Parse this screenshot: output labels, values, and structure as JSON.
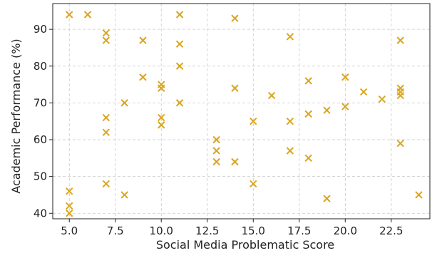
{
  "chart_data": {
    "type": "scatter",
    "title": "",
    "xlabel": "Social Media Problematic Score",
    "ylabel": "Academic Performance (%)",
    "xlim": [
      4.1,
      24.6
    ],
    "ylim": [
      38.5,
      97
    ],
    "xticks": [
      "5.0",
      "7.5",
      "10.0",
      "12.5",
      "15.0",
      "17.5",
      "20.0",
      "22.5"
    ],
    "yticks": [
      "40",
      "50",
      "60",
      "70",
      "80",
      "90"
    ],
    "grid": true,
    "marker": "x",
    "color": "#DAA520",
    "points": [
      {
        "x": 5,
        "y": 94
      },
      {
        "x": 5,
        "y": 46
      },
      {
        "x": 5,
        "y": 42
      },
      {
        "x": 5,
        "y": 40
      },
      {
        "x": 6,
        "y": 94
      },
      {
        "x": 7,
        "y": 89
      },
      {
        "x": 7,
        "y": 87
      },
      {
        "x": 7,
        "y": 66
      },
      {
        "x": 7,
        "y": 62
      },
      {
        "x": 7,
        "y": 48
      },
      {
        "x": 8,
        "y": 70
      },
      {
        "x": 8,
        "y": 45
      },
      {
        "x": 9,
        "y": 87
      },
      {
        "x": 9,
        "y": 77
      },
      {
        "x": 10,
        "y": 75
      },
      {
        "x": 10,
        "y": 74
      },
      {
        "x": 10,
        "y": 66
      },
      {
        "x": 10,
        "y": 64
      },
      {
        "x": 11,
        "y": 94
      },
      {
        "x": 11,
        "y": 86
      },
      {
        "x": 11,
        "y": 80
      },
      {
        "x": 11,
        "y": 70
      },
      {
        "x": 13,
        "y": 60
      },
      {
        "x": 13,
        "y": 57
      },
      {
        "x": 13,
        "y": 54
      },
      {
        "x": 14,
        "y": 93
      },
      {
        "x": 14,
        "y": 74
      },
      {
        "x": 14,
        "y": 54
      },
      {
        "x": 15,
        "y": 65
      },
      {
        "x": 15,
        "y": 48
      },
      {
        "x": 16,
        "y": 72
      },
      {
        "x": 17,
        "y": 88
      },
      {
        "x": 17,
        "y": 65
      },
      {
        "x": 17,
        "y": 57
      },
      {
        "x": 18,
        "y": 76
      },
      {
        "x": 18,
        "y": 67
      },
      {
        "x": 18,
        "y": 55
      },
      {
        "x": 19,
        "y": 68
      },
      {
        "x": 19,
        "y": 44
      },
      {
        "x": 20,
        "y": 77
      },
      {
        "x": 20,
        "y": 69
      },
      {
        "x": 21,
        "y": 73
      },
      {
        "x": 22,
        "y": 71
      },
      {
        "x": 23,
        "y": 87
      },
      {
        "x": 23,
        "y": 74
      },
      {
        "x": 23,
        "y": 73
      },
      {
        "x": 23,
        "y": 72
      },
      {
        "x": 23,
        "y": 59
      },
      {
        "x": 24,
        "y": 45
      }
    ]
  }
}
